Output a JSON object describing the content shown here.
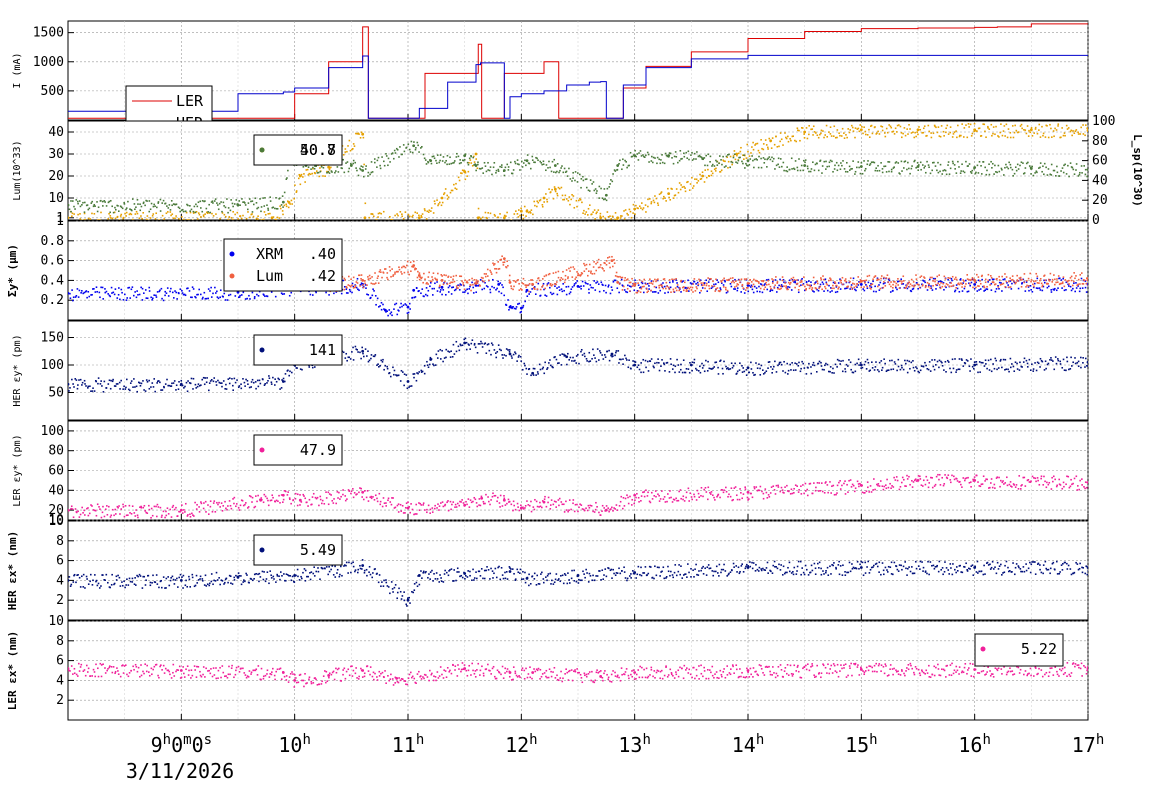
{
  "chart_data": [
    {
      "type": "line",
      "ylabel": "I (mA)",
      "yticks": [
        "500",
        "1000",
        "1500"
      ],
      "ylim": [
        0,
        1700
      ],
      "legend": [
        {
          "label": "LER",
          "color": "#dd0000"
        },
        {
          "label": "HER",
          "color": "#0000cc"
        }
      ],
      "series": [
        {
          "name": "LER",
          "color": "#dd0000",
          "x": [
            8.0,
            9.9,
            10.0,
            10.3,
            10.6,
            10.62,
            10.65,
            10.8,
            11.15,
            11.4,
            11.62,
            11.65,
            11.82,
            11.85,
            12.1,
            12.2,
            12.3,
            12.33,
            12.75,
            12.9,
            13.1,
            13.5,
            14.0,
            14.5,
            15.0,
            15.5,
            16.0,
            16.2,
            16.5,
            17.0
          ],
          "y": [
            30,
            30,
            450,
            1000,
            1600,
            1600,
            30,
            30,
            800,
            800,
            1300,
            30,
            30,
            800,
            800,
            1000,
            1000,
            30,
            30,
            550,
            920,
            1170,
            1400,
            1520,
            1570,
            1580,
            1590,
            1600,
            1650,
            1660
          ]
        },
        {
          "name": "HER",
          "color": "#0000cc",
          "x": [
            8.0,
            9.2,
            9.5,
            9.9,
            10.0,
            10.3,
            10.6,
            10.62,
            10.65,
            11.0,
            11.1,
            11.35,
            11.6,
            11.62,
            11.64,
            11.82,
            11.85,
            11.9,
            12.0,
            12.2,
            12.4,
            12.6,
            12.7,
            12.75,
            12.9,
            13.1,
            13.5,
            14.0,
            14.5,
            15.0,
            16.0,
            17.0
          ],
          "y": [
            150,
            150,
            450,
            480,
            550,
            900,
            1100,
            1100,
            30,
            30,
            200,
            650,
            950,
            950,
            980,
            980,
            30,
            400,
            450,
            500,
            600,
            650,
            660,
            30,
            600,
            900,
            1050,
            1110,
            1110,
            1110,
            1110,
            1110
          ]
        }
      ]
    },
    {
      "type": "scatter",
      "ylabel": "Lum(10^33)",
      "yticks": [
        "1",
        "10",
        "20",
        "30",
        "40"
      ],
      "ylim": [
        0,
        45
      ],
      "y2label": "L_sp(10^30)",
      "y2ticks": [
        "0",
        "20",
        "40",
        "60",
        "80",
        "100"
      ],
      "y2lim": [
        0,
        100
      ],
      "legend": [
        {
          "label": "40.7",
          "color": "#e5a000"
        },
        {
          "label": "50.8",
          "color": "#4a7a3a"
        }
      ],
      "series": [
        {
          "name": "Lum",
          "color": "#e5a000",
          "axis": "left",
          "x": [
            8.0,
            9.8,
            9.95,
            10.05,
            10.3,
            10.4,
            10.6,
            10.62,
            11.1,
            11.3,
            11.5,
            11.6,
            11.62,
            11.85,
            12.0,
            12.05,
            12.2,
            12.3,
            12.7,
            12.85,
            13.0,
            13.3,
            13.6,
            13.9,
            14.2,
            14.5,
            15.0,
            15.5,
            16.0,
            16.5,
            17.0
          ],
          "y": [
            1,
            1,
            8,
            20,
            24,
            32,
            39,
            1,
            1,
            10,
            22,
            30,
            1,
            1,
            4,
            4,
            10,
            14,
            1,
            1,
            5,
            12,
            20,
            30,
            36,
            40,
            41,
            41,
            41,
            41,
            40.7
          ]
        },
        {
          "name": "Lsp",
          "color": "#4a7a3a",
          "axis": "right",
          "x": [
            8.0,
            9.5,
            9.9,
            9.95,
            10.1,
            10.5,
            10.6,
            11.05,
            11.2,
            11.5,
            11.6,
            11.85,
            12.05,
            12.3,
            12.75,
            12.85,
            13.0,
            13.3,
            13.6,
            14.0,
            14.5,
            15.0,
            15.5,
            16.0,
            16.5,
            17.0
          ],
          "y": [
            15,
            15,
            18,
            65,
            55,
            55,
            50,
            75,
            60,
            65,
            55,
            50,
            60,
            55,
            25,
            55,
            65,
            65,
            62,
            60,
            55,
            54,
            54,
            53,
            52,
            51
          ]
        }
      ]
    },
    {
      "type": "scatter",
      "ylabel": "Σy* (μm)",
      "yticks": [
        "0.2",
        "0.4",
        "0.6",
        "0.8",
        "1"
      ],
      "ylim": [
        0.0,
        1.0
      ],
      "legend": [
        {
          "label": "XRM",
          "value": ".40",
          "color": "#0000ee"
        },
        {
          "label": "Lum",
          "value": ".42",
          "color": "#f06040"
        }
      ],
      "series": [
        {
          "name": "XRM",
          "color": "#0000ee",
          "x": [
            8.0,
            9.5,
            9.9,
            10.0,
            10.3,
            10.6,
            10.8,
            11.0,
            11.05,
            11.3,
            11.6,
            11.8,
            11.9,
            12.0,
            12.05,
            12.5,
            13.0,
            14.0,
            15.0,
            16.0,
            17.0
          ],
          "y": [
            0.27,
            0.28,
            0.31,
            0.32,
            0.33,
            0.36,
            0.1,
            0.13,
            0.3,
            0.33,
            0.35,
            0.36,
            0.13,
            0.12,
            0.3,
            0.34,
            0.35,
            0.35,
            0.36,
            0.36,
            0.36
          ]
        },
        {
          "name": "Lum",
          "color": "#f06040",
          "x": [
            10.05,
            10.3,
            10.6,
            11.05,
            11.1,
            11.3,
            11.6,
            11.85,
            11.9,
            12.1,
            12.8,
            12.85,
            13.0,
            14.0,
            15.0,
            16.0,
            17.0
          ],
          "y": [
            0.38,
            0.36,
            0.4,
            0.55,
            0.45,
            0.4,
            0.37,
            0.62,
            0.38,
            0.36,
            0.6,
            0.38,
            0.35,
            0.37,
            0.39,
            0.4,
            0.42
          ]
        }
      ]
    },
    {
      "type": "scatter",
      "ylabel": "HER εy* (pm)",
      "yticks": [
        "50",
        "100",
        "150"
      ],
      "ylim": [
        0,
        180
      ],
      "legend": [
        {
          "label": "141",
          "color": "#00107a"
        }
      ],
      "series": [
        {
          "name": "HER εy*",
          "color": "#00107a",
          "x": [
            8.0,
            9.0,
            9.9,
            10.0,
            10.3,
            10.6,
            11.0,
            11.2,
            11.5,
            11.9,
            12.1,
            12.4,
            12.8,
            13.0,
            13.5,
            14.0,
            15.0,
            16.0,
            17.0
          ],
          "y": [
            65,
            65,
            70,
            100,
            115,
            125,
            70,
            110,
            140,
            120,
            85,
            115,
            120,
            100,
            100,
            95,
            100,
            100,
            105
          ]
        }
      ]
    },
    {
      "type": "scatter",
      "ylabel": "LER εy* (pm)",
      "yticks": [
        "10",
        "20",
        "40",
        "60",
        "80",
        "100"
      ],
      "ylim": [
        10,
        110
      ],
      "legend": [
        {
          "label": "47.9",
          "color": "#f0209a"
        }
      ],
      "series": [
        {
          "name": "LER εy*",
          "color": "#f0209a",
          "x": [
            8.0,
            9.0,
            9.7,
            9.9,
            10.05,
            10.6,
            11.0,
            11.5,
            11.65,
            11.85,
            12.0,
            12.2,
            12.75,
            13.0,
            14.0,
            15.0,
            15.5,
            16.0,
            17.0
          ],
          "y": [
            20,
            20,
            30,
            35,
            30,
            38,
            22,
            25,
            32,
            30,
            22,
            28,
            20,
            35,
            38,
            45,
            50,
            50,
            47.9
          ]
        }
      ]
    },
    {
      "type": "scatter",
      "ylabel": "HER εx* (nm)",
      "yticks": [
        "2",
        "4",
        "6",
        "8",
        "10"
      ],
      "ylim": [
        0,
        10
      ],
      "legend": [
        {
          "label": "5.49",
          "color": "#00107a"
        }
      ],
      "series": [
        {
          "name": "HER εx*",
          "color": "#00107a",
          "x": [
            8.0,
            9.0,
            9.5,
            10.0,
            10.6,
            11.0,
            11.1,
            11.5,
            11.9,
            12.05,
            12.5,
            13.0,
            14.0,
            15.0,
            16.0,
            17.0
          ],
          "y": [
            4.0,
            4.0,
            4.3,
            4.5,
            5.5,
            2.0,
            4.5,
            4.7,
            4.9,
            4.2,
            4.5,
            4.8,
            5.3,
            5.3,
            5.3,
            5.3
          ]
        }
      ]
    },
    {
      "type": "scatter",
      "ylabel": "LER εx* (nm)",
      "yticks": [
        "2",
        "4",
        "6",
        "8",
        "10"
      ],
      "ylim": [
        0,
        10
      ],
      "legend": [
        {
          "label": "5.22",
          "color": "#f0209a"
        }
      ],
      "series": [
        {
          "name": "LER εx*",
          "color": "#f0209a",
          "x": [
            8.0,
            9.0,
            9.9,
            10.0,
            10.3,
            10.6,
            10.9,
            11.5,
            11.9,
            12.1,
            12.7,
            13.0,
            14.0,
            15.0,
            16.0,
            17.0
          ],
          "y": [
            5.2,
            5.0,
            4.8,
            4.0,
            4.5,
            5.0,
            4.2,
            5.2,
            4.8,
            4.8,
            4.4,
            4.8,
            5.0,
            5.1,
            5.1,
            5.2
          ]
        }
      ]
    }
  ],
  "xaxis": {
    "xlim": [
      8.0,
      17.0
    ],
    "ticks": [
      {
        "label": "9h0m0s",
        "x": 9.0
      },
      {
        "label": "10h",
        "x": 10.0
      },
      {
        "label": "11h",
        "x": 11.0
      },
      {
        "label": "12h",
        "x": 12.0
      },
      {
        "label": "13h",
        "x": 13.0
      },
      {
        "label": "14h",
        "x": 14.0
      },
      {
        "label": "15h",
        "x": 15.0
      },
      {
        "label": "16h",
        "x": 16.0
      },
      {
        "label": "17h",
        "x": 17.0
      }
    ],
    "date": "3/11/2026"
  }
}
